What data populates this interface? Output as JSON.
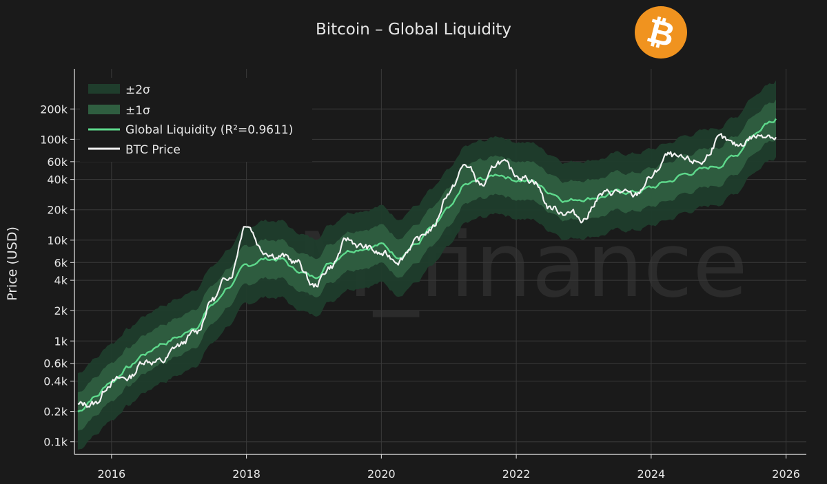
{
  "chart_data": {
    "type": "line",
    "title": "Bitcoin – Global Liquidity",
    "xlabel": "",
    "ylabel": "Price (USD)",
    "yscale": "log",
    "xlim": [
      2015.45,
      2026.3
    ],
    "ylim": [
      0.075,
      500
    ],
    "x_ticks": [
      2016,
      2018,
      2020,
      2022,
      2024,
      2026
    ],
    "x_tick_labels": [
      "2016",
      "2018",
      "2020",
      "2022",
      "2024",
      "2026"
    ],
    "y_ticks": [
      0.1,
      0.2,
      0.4,
      0.6,
      1,
      2,
      4,
      6,
      10,
      20,
      40,
      60,
      100,
      200
    ],
    "y_tick_labels": [
      "0.1k",
      "0.2k",
      "0.4k",
      "0.6k",
      "1k",
      "2k",
      "4k",
      "6k",
      "10k",
      "20k",
      "40k",
      "60k",
      "100k",
      "200k"
    ],
    "band_1sigma_factor": 1.55,
    "band_2sigma_factor": 2.4,
    "x": [
      2015.5,
      2015.75,
      2016.0,
      2016.25,
      2016.5,
      2016.75,
      2017.0,
      2017.25,
      2017.5,
      2017.75,
      2018.0,
      2018.25,
      2018.5,
      2018.75,
      2019.0,
      2019.25,
      2019.5,
      2019.75,
      2020.0,
      2020.25,
      2020.5,
      2020.75,
      2021.0,
      2021.25,
      2021.5,
      2021.75,
      2022.0,
      2022.25,
      2022.5,
      2022.75,
      2023.0,
      2023.25,
      2023.5,
      2023.75,
      2024.0,
      2024.25,
      2024.5,
      2024.75,
      2025.0,
      2025.25,
      2025.5,
      2025.75,
      2025.85
    ],
    "series": [
      {
        "name": "Global Liquidity (R²=0.9611)",
        "color": "#5ed98c",
        "values": [
          0.2,
          0.28,
          0.4,
          0.55,
          0.75,
          0.95,
          1.1,
          1.4,
          2.3,
          3.5,
          5.5,
          6.5,
          6.5,
          5.0,
          4.3,
          6.0,
          8.0,
          8.5,
          9.0,
          7.0,
          9.0,
          13,
          20,
          35,
          40,
          45,
          40,
          38,
          30,
          25,
          26,
          27,
          30,
          30,
          33,
          38,
          45,
          50,
          55,
          70,
          110,
          155,
          160
        ]
      },
      {
        "name": "BTC Price",
        "color": "#f2f2f2",
        "values": [
          0.23,
          0.24,
          0.4,
          0.43,
          0.65,
          0.62,
          0.9,
          1.2,
          2.6,
          4.5,
          15,
          8,
          7,
          6,
          3.5,
          5.5,
          10,
          8.5,
          7.2,
          6.5,
          9.5,
          13,
          30,
          55,
          35,
          60,
          45,
          40,
          21,
          19,
          16.5,
          28,
          30,
          27,
          42,
          68,
          60,
          60,
          100,
          85,
          105,
          115,
          105
        ]
      }
    ],
    "legend": [
      {
        "label": "±2σ",
        "kind": "band",
        "color": "#1f3d2c"
      },
      {
        "label": "±1σ",
        "kind": "band",
        "color": "#2f5e40"
      },
      {
        "label": "Global Liquidity (R²=0.9611)",
        "kind": "line",
        "color": "#5ed98c"
      },
      {
        "label": "BTC Price",
        "kind": "line",
        "color": "#f2f2f2"
      }
    ],
    "legend_position": "top-left",
    "grid": true
  },
  "watermark": "M_finance",
  "logo": {
    "glyph": "₿",
    "color": "#f0931f"
  }
}
